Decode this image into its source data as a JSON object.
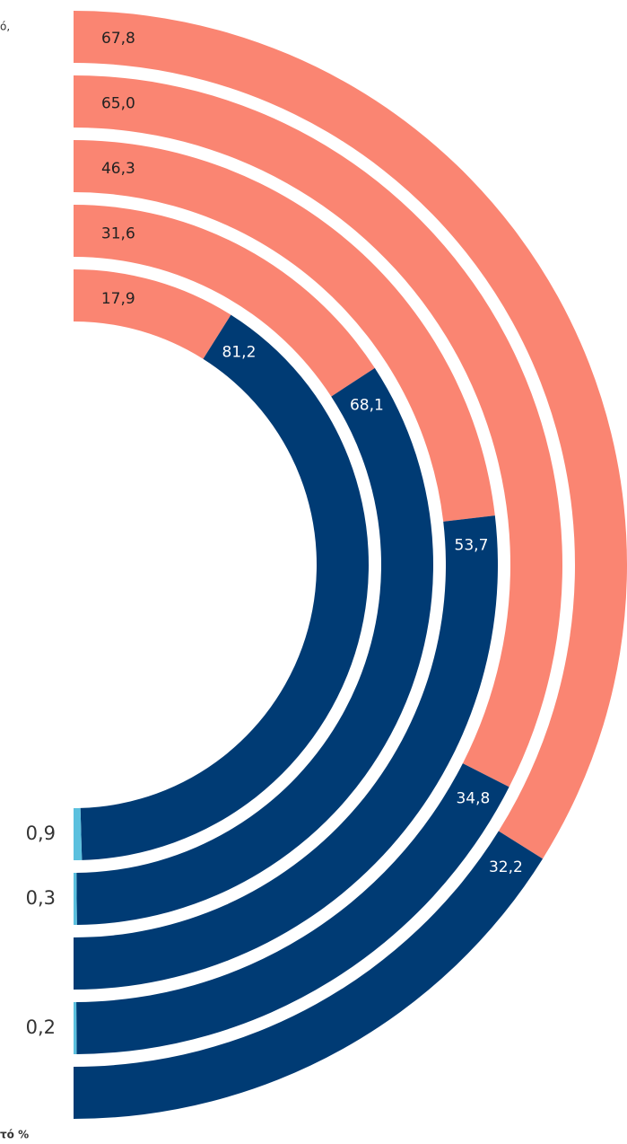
{
  "chart_data": {
    "type": "radial-stacked-half-donut",
    "annotations": [
      "ό,",
      "τό %"
    ],
    "series": [
      {
        "color": "#fa8572",
        "values": [
          67.8,
          65.0,
          46.3,
          31.6,
          17.9
        ],
        "value_labels": [
          "67,8",
          "65,0",
          "46,3",
          "31,6",
          "17,9"
        ]
      },
      {
        "color": "#003b74",
        "values": [
          32.2,
          34.8,
          53.7,
          68.1,
          81.2
        ],
        "value_labels": [
          "32,2",
          "34,8",
          "53,7",
          "68,1",
          "81,2"
        ]
      },
      {
        "color": "#5bc0de",
        "values": [
          null,
          0.2,
          null,
          0.3,
          0.9
        ],
        "value_labels": [
          null,
          "0,2",
          null,
          "0,3",
          "0,9"
        ]
      }
    ]
  }
}
